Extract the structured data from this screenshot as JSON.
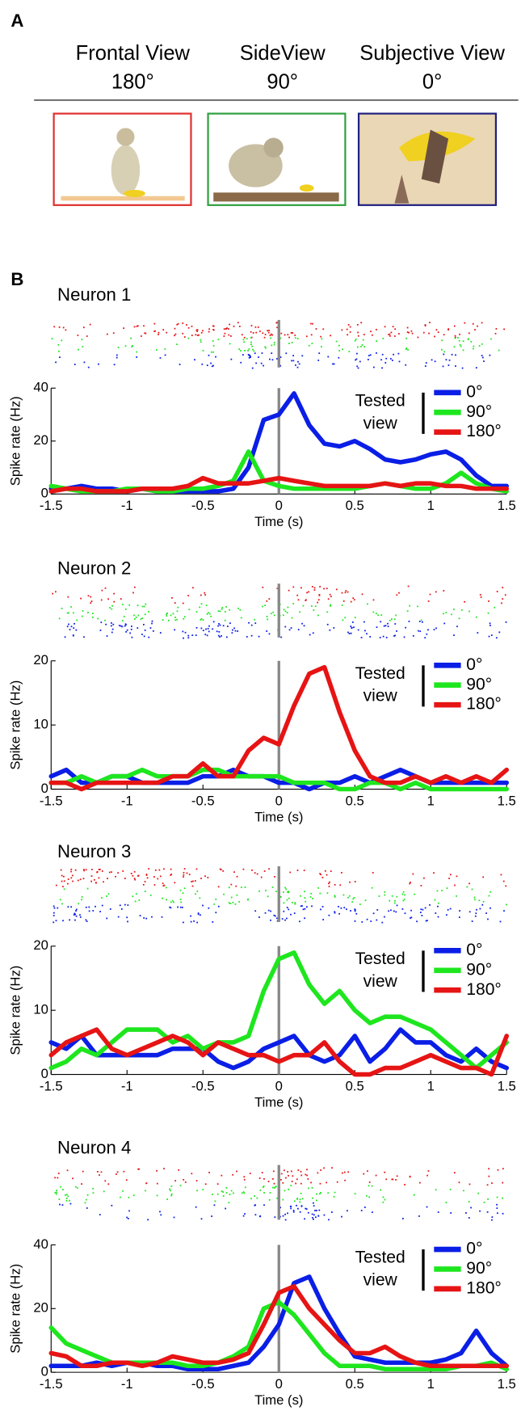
{
  "panel_a": {
    "label": "A",
    "views": [
      {
        "name": "Frontal View",
        "angle": "180°"
      },
      {
        "name": "SideView",
        "angle": "90°"
      },
      {
        "name": "Subjective View",
        "angle": "0°"
      }
    ]
  },
  "panel_b": {
    "label": "B"
  },
  "chart_data": [
    {
      "type": "line",
      "title": "Neuron 1",
      "xlabel": "Time (s)",
      "ylabel": "Spike rate (Hz)",
      "legend_title": [
        "Tested",
        "view"
      ],
      "vline": 0,
      "x": [
        -1.5,
        -1.4,
        -1.3,
        -1.2,
        -1.1,
        -1.0,
        -0.9,
        -0.8,
        -0.7,
        -0.6,
        -0.5,
        -0.4,
        -0.3,
        -0.2,
        -0.1,
        0,
        0.1,
        0.2,
        0.3,
        0.4,
        0.5,
        0.6,
        0.7,
        0.8,
        0.9,
        1.0,
        1.1,
        1.2,
        1.3,
        1.4,
        1.5
      ],
      "xlim": [
        -1.5,
        1.5
      ],
      "xticks": [
        -1.5,
        -1,
        -0.5,
        0,
        0.5,
        1,
        1.5
      ],
      "ylim": [
        0,
        40
      ],
      "yticks": [
        0,
        20,
        40
      ],
      "series": [
        {
          "name": "0°",
          "color": "#0a1ee6",
          "values": [
            2,
            2,
            3,
            2,
            2,
            1,
            2,
            1,
            1,
            1,
            1,
            1,
            2,
            10,
            28,
            30,
            38,
            26,
            19,
            18,
            20,
            17,
            13,
            12,
            13,
            15,
            16,
            13,
            7,
            3,
            3
          ]
        },
        {
          "name": "90°",
          "color": "#1ee61e",
          "values": [
            3,
            2,
            1,
            1,
            1,
            2,
            2,
            1,
            1,
            2,
            2,
            3,
            5,
            16,
            5,
            3,
            2,
            2,
            2,
            2,
            2,
            3,
            4,
            3,
            2,
            2,
            4,
            8,
            4,
            2,
            1
          ]
        },
        {
          "name": "180°",
          "color": "#e61414",
          "values": [
            1,
            2,
            2,
            1,
            1,
            1,
            2,
            2,
            2,
            3,
            6,
            4,
            4,
            4,
            5,
            6,
            5,
            4,
            3,
            3,
            3,
            3,
            4,
            3,
            4,
            4,
            3,
            3,
            2,
            2,
            2
          ]
        }
      ]
    },
    {
      "type": "line",
      "title": "Neuron 2",
      "xlabel": "Time (s)",
      "ylabel": "Spike rate (Hz)",
      "legend_title": [
        "Tested",
        "view"
      ],
      "vline": 0,
      "x": [
        -1.5,
        -1.4,
        -1.3,
        -1.2,
        -1.1,
        -1.0,
        -0.9,
        -0.8,
        -0.7,
        -0.6,
        -0.5,
        -0.4,
        -0.3,
        -0.2,
        -0.1,
        0,
        0.1,
        0.2,
        0.3,
        0.4,
        0.5,
        0.6,
        0.7,
        0.8,
        0.9,
        1.0,
        1.1,
        1.2,
        1.3,
        1.4,
        1.5
      ],
      "xlim": [
        -1.5,
        1.5
      ],
      "xticks": [
        -1.5,
        -1,
        -0.5,
        0,
        0.5,
        1,
        1.5
      ],
      "ylim": [
        0,
        20
      ],
      "yticks": [
        0,
        10,
        20
      ],
      "series": [
        {
          "name": "0°",
          "color": "#0a1ee6",
          "values": [
            2,
            3,
            1,
            1,
            2,
            2,
            1,
            1,
            1,
            1,
            2,
            2,
            3,
            2,
            2,
            1,
            1,
            0,
            1,
            1,
            2,
            1,
            2,
            3,
            2,
            1,
            1,
            1,
            1,
            1,
            1
          ]
        },
        {
          "name": "90°",
          "color": "#1ee61e",
          "values": [
            1,
            1,
            2,
            1,
            2,
            2,
            3,
            2,
            2,
            2,
            3,
            3,
            2,
            2,
            2,
            2,
            1,
            1,
            1,
            0,
            0,
            1,
            1,
            0,
            1,
            0,
            0,
            0,
            0,
            0,
            0
          ]
        },
        {
          "name": "180°",
          "color": "#e61414",
          "values": [
            1,
            1,
            0,
            1,
            1,
            1,
            1,
            1,
            2,
            2,
            4,
            2,
            2,
            6,
            8,
            7,
            13,
            18,
            19,
            12,
            6,
            2,
            1,
            1,
            2,
            1,
            2,
            1,
            2,
            1,
            3
          ]
        }
      ]
    },
    {
      "type": "line",
      "title": "Neuron 3",
      "xlabel": "Time (s)",
      "ylabel": "Spike rate (Hz)",
      "legend_title": [
        "Tested",
        "view"
      ],
      "vline": 0,
      "x": [
        -1.5,
        -1.4,
        -1.3,
        -1.2,
        -1.1,
        -1.0,
        -0.9,
        -0.8,
        -0.7,
        -0.6,
        -0.5,
        -0.4,
        -0.3,
        -0.2,
        -0.1,
        0,
        0.1,
        0.2,
        0.3,
        0.4,
        0.5,
        0.6,
        0.7,
        0.8,
        0.9,
        1.0,
        1.1,
        1.2,
        1.3,
        1.4,
        1.5
      ],
      "xlim": [
        -1.5,
        1.5
      ],
      "xticks": [
        -1.5,
        -1,
        -0.5,
        0,
        0.5,
        1,
        1.5
      ],
      "ylim": [
        0,
        20
      ],
      "yticks": [
        0,
        10,
        20
      ],
      "series": [
        {
          "name": "0°",
          "color": "#0a1ee6",
          "values": [
            5,
            4,
            6,
            3,
            3,
            3,
            3,
            3,
            4,
            4,
            4,
            2,
            1,
            2,
            4,
            5,
            6,
            3,
            2,
            3,
            6,
            2,
            4,
            7,
            5,
            5,
            3,
            2,
            4,
            2,
            1
          ]
        },
        {
          "name": "90°",
          "color": "#1ee61e",
          "values": [
            1,
            2,
            4,
            3,
            5,
            7,
            7,
            7,
            5,
            6,
            4,
            5,
            5,
            6,
            13,
            18,
            19,
            14,
            11,
            13,
            10,
            8,
            9,
            9,
            8,
            7,
            5,
            3,
            1,
            3,
            5
          ]
        },
        {
          "name": "180°",
          "color": "#e61414",
          "values": [
            3,
            5,
            6,
            7,
            4,
            3,
            4,
            5,
            6,
            5,
            3,
            5,
            4,
            3,
            3,
            2,
            3,
            3,
            5,
            2,
            0,
            0,
            1,
            1,
            2,
            3,
            2,
            1,
            1,
            0,
            6
          ]
        }
      ]
    },
    {
      "type": "line",
      "title": "Neuron 4",
      "xlabel": "Time (s)",
      "ylabel": "Spike rate (Hz)",
      "legend_title": [
        "Tested",
        "view"
      ],
      "vline": 0,
      "x": [
        -1.5,
        -1.4,
        -1.3,
        -1.2,
        -1.1,
        -1.0,
        -0.9,
        -0.8,
        -0.7,
        -0.6,
        -0.5,
        -0.4,
        -0.3,
        -0.2,
        -0.1,
        0,
        0.1,
        0.2,
        0.3,
        0.4,
        0.5,
        0.6,
        0.7,
        0.8,
        0.9,
        1.0,
        1.1,
        1.2,
        1.3,
        1.4,
        1.5
      ],
      "xlim": [
        -1.5,
        1.5
      ],
      "xticks": [
        -1.5,
        -1,
        -0.5,
        0,
        0.5,
        1,
        1.5
      ],
      "ylim": [
        0,
        40
      ],
      "yticks": [
        0,
        20,
        40
      ],
      "series": [
        {
          "name": "0°",
          "color": "#0a1ee6",
          "values": [
            2,
            2,
            2,
            3,
            2,
            3,
            3,
            2,
            2,
            1,
            1,
            1,
            2,
            3,
            8,
            15,
            28,
            30,
            20,
            12,
            5,
            4,
            3,
            3,
            3,
            3,
            4,
            6,
            13,
            6,
            2
          ]
        },
        {
          "name": "90°",
          "color": "#1ee61e",
          "values": [
            14,
            9,
            7,
            5,
            3,
            3,
            3,
            3,
            3,
            2,
            2,
            3,
            5,
            8,
            20,
            22,
            18,
            12,
            6,
            2,
            2,
            2,
            1,
            1,
            1,
            1,
            1,
            2,
            2,
            3,
            1
          ]
        },
        {
          "name": "180°",
          "color": "#e61414",
          "values": [
            6,
            5,
            2,
            2,
            3,
            3,
            2,
            3,
            5,
            4,
            3,
            3,
            4,
            6,
            15,
            25,
            27,
            20,
            15,
            10,
            6,
            6,
            8,
            5,
            3,
            2,
            2,
            2,
            2,
            2,
            2
          ]
        }
      ]
    }
  ]
}
